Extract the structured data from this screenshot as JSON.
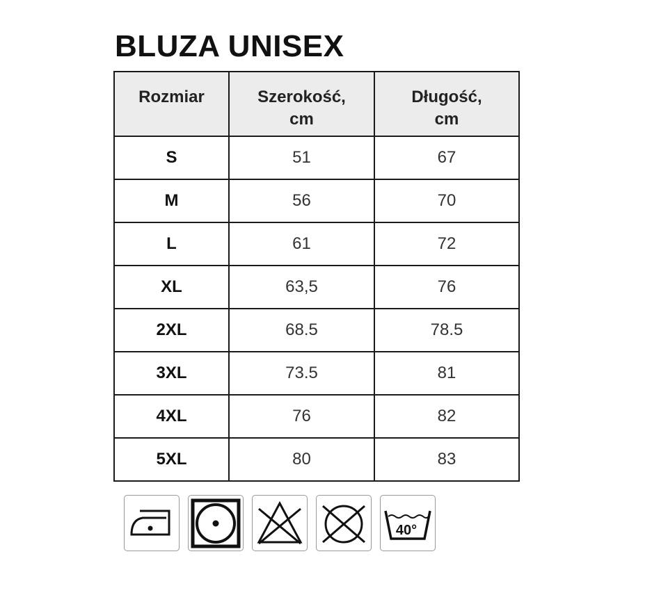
{
  "title": "BLUZA UNISEX",
  "table": {
    "headers": [
      "Rozmiar",
      "Szerokość,\ncm",
      "Długość,\ncm"
    ],
    "header_lines": [
      [
        "Rozmiar"
      ],
      [
        "Szerokość,",
        "cm"
      ],
      [
        "Długość,",
        "cm"
      ]
    ],
    "rows": [
      [
        "S",
        "51",
        "67"
      ],
      [
        "M",
        "56",
        "70"
      ],
      [
        "L",
        "61",
        "72"
      ],
      [
        "XL",
        "63,5",
        "76"
      ],
      [
        "2XL",
        "68.5",
        "78.5"
      ],
      [
        "3XL",
        "73.5",
        "81"
      ],
      [
        "4XL",
        "76",
        "82"
      ],
      [
        "5XL",
        "80",
        "83"
      ]
    ]
  },
  "care_icons": [
    {
      "icon": "iron-low-temperature-icon"
    },
    {
      "icon": "tumble-dry-normal-icon"
    },
    {
      "icon": "do-not-bleach-icon"
    },
    {
      "icon": "do-not-dry-clean-icon"
    },
    {
      "icon": "wash-40-icon",
      "label": "40°"
    }
  ]
}
